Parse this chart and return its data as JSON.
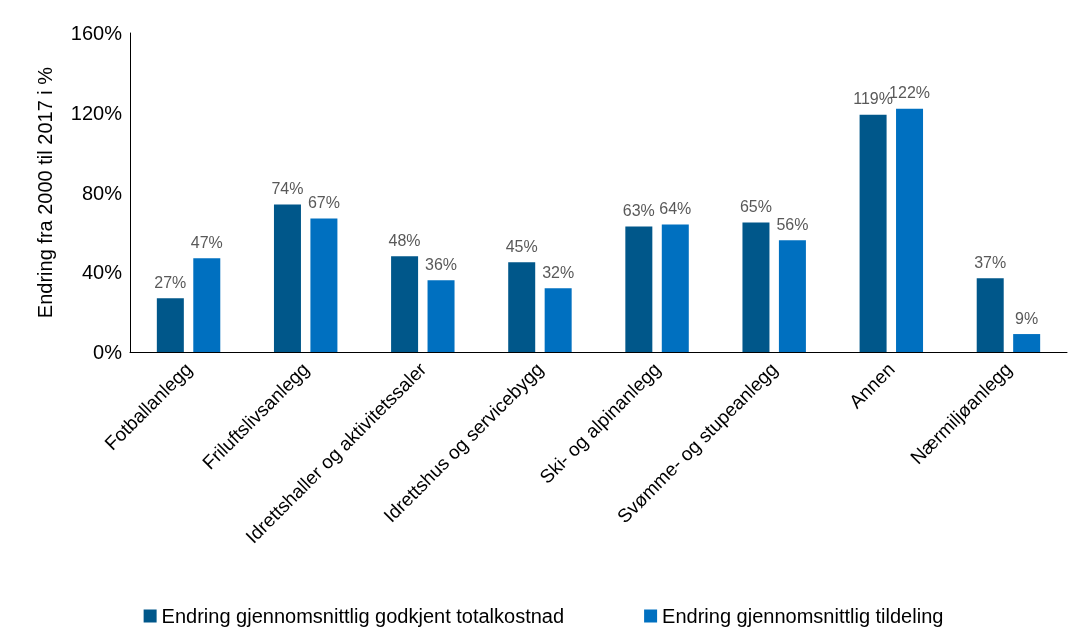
{
  "chart_data": {
    "type": "bar",
    "ylabel": "Endring fra 2000 til 2017 i %",
    "categories": [
      "Fotballanlegg",
      "Friluftslivsanlegg",
      "Idrettshaller og aktivitetssaler",
      "Idrettshus og servicebygg",
      "Ski- og alpinanlegg",
      "Svømme- og stupeanlegg",
      "Annen",
      "Nærmiljøanlegg"
    ],
    "series": [
      {
        "name": "Endring gjennomsnittlig godkjent totalkostnad",
        "color": "#00578a",
        "values": [
          27,
          74,
          48,
          45,
          63,
          65,
          119,
          37
        ],
        "value_labels": [
          "27%",
          "74%",
          "48%",
          "45%",
          "63%",
          "65%",
          "119%",
          "37%"
        ]
      },
      {
        "name": "Endring gjennomsnittlig tildeling",
        "color": "#0070c0",
        "values": [
          47,
          67,
          36,
          32,
          64,
          56,
          122,
          9
        ],
        "value_labels": [
          "47%",
          "67%",
          "36%",
          "32%",
          "64%",
          "56%",
          "122%",
          "9%"
        ]
      }
    ],
    "ylim": [
      0,
      160
    ],
    "yticks": [
      {
        "value": 0,
        "label": "0%"
      },
      {
        "value": 40,
        "label": "40%"
      },
      {
        "value": 80,
        "label": "80%"
      },
      {
        "value": 120,
        "label": "120%"
      },
      {
        "value": 160,
        "label": "160%"
      }
    ],
    "grid": false,
    "legend": "bottom"
  }
}
